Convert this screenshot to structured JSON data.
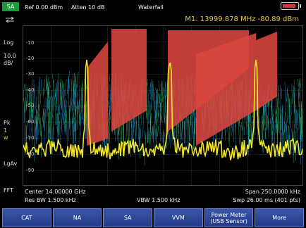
{
  "status": {
    "mode": "SA",
    "scale_type": "Log",
    "scale_per_div": "10.0",
    "scale_unit": "dB/",
    "detector": "Pk",
    "trace_count": "1",
    "trace_mode": "w",
    "average_type": "LgAv",
    "sweep_type": "FFT"
  },
  "header": {
    "ref_level": "Ref 0.00 dBm",
    "attenuation": "Atten 10 dB",
    "display_mode": "Waterfall",
    "marker_readout": "M1: 13999.878 MHz -80.89 dBm"
  },
  "plot": {
    "y_ticks": [
      "-10",
      "-20",
      "-30",
      "-40",
      "-50",
      "-60",
      "-70",
      "-80",
      "-90"
    ]
  },
  "footer": {
    "center": "Center 14.00000 GHz",
    "span": "Span 250.0000 kHz",
    "res_bw": "Res BW 1.500 kHz",
    "vbw": "VBW 1.500 kHz",
    "sweep": "Swp 26.00 ms (401 pts)"
  },
  "softkeys": [
    "CAT",
    "NA",
    "SA",
    "VVM",
    "Power Meter\n(USB Sensor)",
    "More"
  ],
  "colors": {
    "trace": "#f2e42c",
    "waterfall_red": "#d9473f",
    "waterfall_green": "#33c36a",
    "waterfall_blue": "#1a8fd0",
    "softkey_bg": "#2a4593",
    "badge": "#1c9a3c"
  }
}
